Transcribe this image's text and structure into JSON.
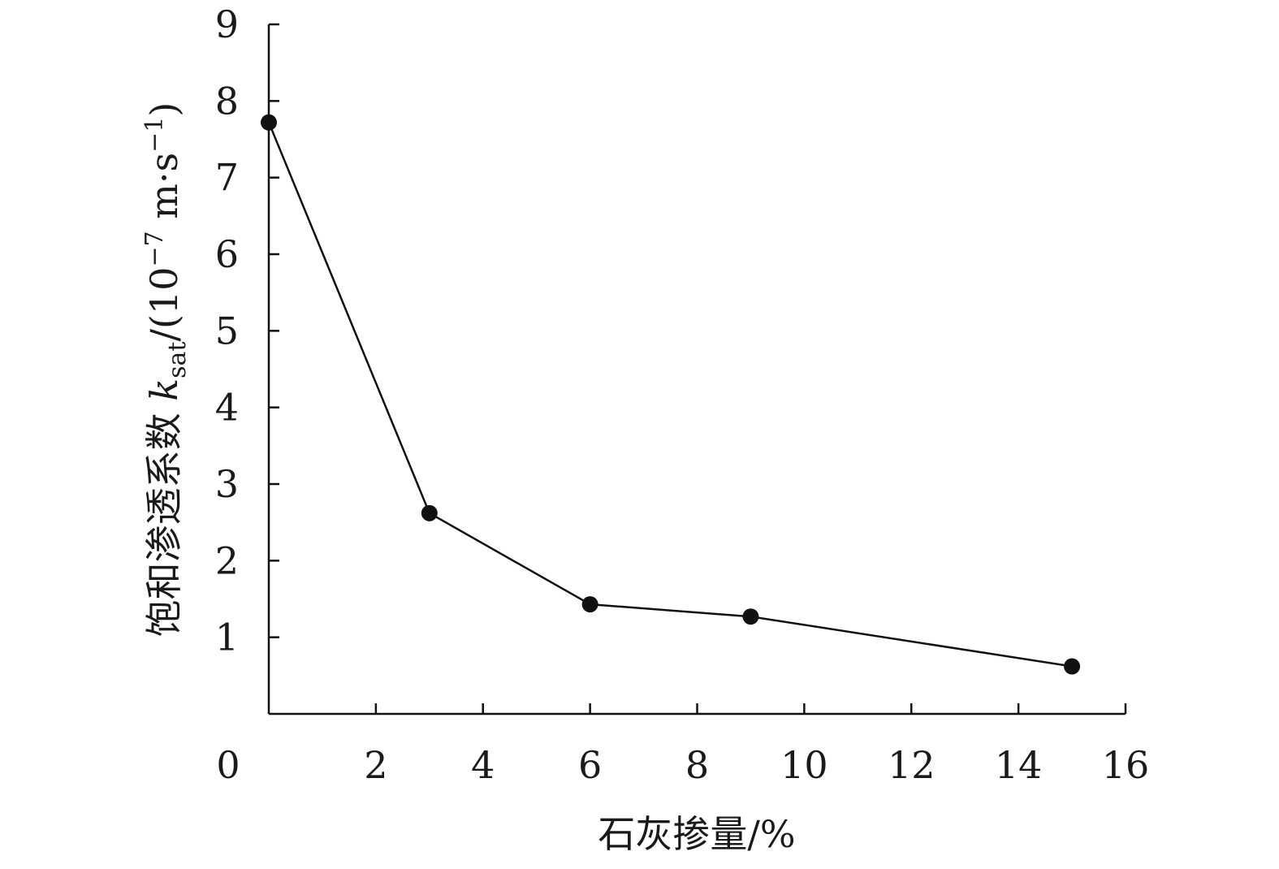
{
  "chart_data": {
    "type": "line",
    "title": "",
    "xlabel": "石灰掺量/%",
    "ylabel": {
      "prefix": "饱和渗透系数 ",
      "symbol": "k",
      "subscript": "sat",
      "unit_open": "/(10",
      "exponent": "−7",
      "unit_mid": " m·s",
      "unit_exp": "−1",
      "unit_close": ")"
    },
    "xlim": [
      0,
      16
    ],
    "ylim": [
      0,
      9
    ],
    "xticks": [
      "0",
      "2",
      "4",
      "6",
      "8",
      "10",
      "12",
      "14",
      "16"
    ],
    "yticks": [
      "1",
      "2",
      "3",
      "4",
      "5",
      "6",
      "7",
      "8",
      "9"
    ],
    "grid": false,
    "legend": "none",
    "line_color": "#111111",
    "marker_color": "#111111",
    "series": [
      {
        "x": [
          0,
          3,
          6,
          9,
          15
        ],
        "y": [
          7.72,
          2.62,
          1.43,
          1.27,
          0.62
        ]
      }
    ]
  }
}
